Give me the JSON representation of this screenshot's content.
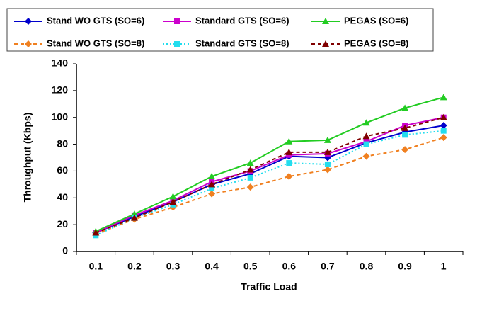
{
  "chart_data": {
    "type": "line",
    "x_label": "Traffic Load",
    "y_label": "Throughput (Kbps)",
    "categories": [
      "0.1",
      "0.2",
      "0.3",
      "0.4",
      "0.5",
      "0.6",
      "0.7",
      "0.8",
      "0.9",
      "1"
    ],
    "ylim": [
      0,
      140
    ],
    "yticks": [
      0,
      20,
      40,
      60,
      80,
      100,
      120,
      140
    ],
    "legend": "top",
    "series": [
      {
        "name": "Stand WO GTS (SO=6)",
        "color": "#0000cc",
        "marker": "diamond",
        "dash": "solid",
        "values": [
          14,
          26,
          37,
          50,
          58,
          71,
          70,
          81,
          89,
          94
        ]
      },
      {
        "name": "Standard GTS (SO=6)",
        "color": "#cc00cc",
        "marker": "square",
        "dash": "solid",
        "values": [
          14,
          27,
          38,
          52,
          60,
          72,
          73,
          82,
          94,
          100
        ]
      },
      {
        "name": "PEGAS (SO=6)",
        "color": "#22cc22",
        "marker": "triangle",
        "dash": "solid",
        "values": [
          15,
          28,
          41,
          56,
          66,
          82,
          83,
          96,
          107,
          115
        ]
      },
      {
        "name": "Stand WO GTS (SO=8)",
        "color": "#f08020",
        "marker": "diamond",
        "dash": "dashed",
        "values": [
          13,
          24,
          33,
          43,
          48,
          56,
          61,
          71,
          76,
          85
        ]
      },
      {
        "name": "Standard GTS (SO=8)",
        "color": "#22ddee",
        "marker": "square",
        "dash": "dotted",
        "values": [
          12,
          25,
          35,
          47,
          55,
          66,
          65,
          80,
          87,
          90
        ]
      },
      {
        "name": "PEGAS (SO=8)",
        "color": "#800000",
        "marker": "triangle",
        "dash": "dashed",
        "values": [
          14,
          25,
          37,
          50,
          61,
          74,
          74,
          86,
          92,
          100
        ]
      }
    ]
  }
}
